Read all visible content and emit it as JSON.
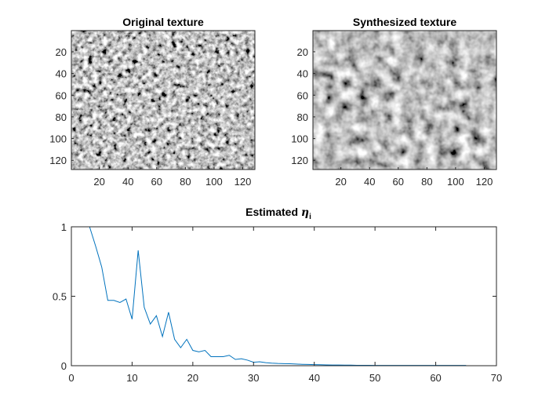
{
  "figure": {
    "background": "#ffffff",
    "axis_color": "#262626",
    "line_color": "#0072BD"
  },
  "chart_data": [
    {
      "type": "heatmap",
      "title": "Original texture",
      "colormap": "gray",
      "size": [
        128,
        128
      ],
      "xlim": [
        0.5,
        128.5
      ],
      "ylim": [
        0.5,
        128.5
      ],
      "xticks": [
        20,
        40,
        60,
        80,
        100,
        120
      ],
      "yticks": [
        20,
        40,
        60,
        80,
        100,
        120
      ],
      "texture": "high-frequency mottled grayscale noise, high contrast"
    },
    {
      "type": "heatmap",
      "title": "Synthesized texture",
      "colormap": "gray",
      "size": [
        128,
        128
      ],
      "xlim": [
        0.5,
        128.5
      ],
      "ylim": [
        0.5,
        128.5
      ],
      "xticks": [
        20,
        40,
        60,
        80,
        100,
        120
      ],
      "yticks": [
        20,
        40,
        60,
        80,
        100,
        120
      ],
      "texture": "smoother lower-contrast grayscale noise"
    },
    {
      "type": "line",
      "title_main": "Estimated ",
      "title_symbol": "η",
      "title_sub": "i",
      "xlim": [
        0,
        70
      ],
      "ylim": [
        0,
        1
      ],
      "xticks": [
        0,
        10,
        20,
        30,
        40,
        50,
        60,
        70
      ],
      "yticks": [
        0,
        0.5,
        1
      ],
      "grid": false,
      "x": [
        3,
        4,
        5,
        6,
        7,
        8,
        9,
        10,
        11,
        12,
        13,
        14,
        15,
        16,
        17,
        18,
        19,
        20,
        21,
        22,
        23,
        24,
        25,
        26,
        27,
        28,
        29,
        30,
        31,
        32,
        33,
        34,
        35,
        36,
        37,
        38,
        39,
        40,
        41,
        42,
        43,
        44,
        45,
        46,
        47,
        48,
        49,
        50,
        51,
        52,
        53,
        54,
        55,
        56,
        57,
        58,
        59,
        60,
        61,
        62,
        63,
        64,
        65
      ],
      "y": [
        1.0,
        0.86,
        0.71,
        0.47,
        0.47,
        0.455,
        0.48,
        0.335,
        0.83,
        0.42,
        0.3,
        0.36,
        0.21,
        0.385,
        0.19,
        0.13,
        0.19,
        0.11,
        0.1,
        0.11,
        0.065,
        0.065,
        0.065,
        0.075,
        0.045,
        0.05,
        0.04,
        0.025,
        0.028,
        0.022,
        0.018,
        0.016,
        0.015,
        0.014,
        0.012,
        0.01,
        0.009,
        0.008,
        0.007,
        0.006,
        0.005,
        0.005,
        0.004,
        0.004,
        0.003,
        0.003,
        0.003,
        0.002,
        0.002,
        0.002,
        0.002,
        0.002,
        0.002,
        0.002,
        0.002,
        0.002,
        0.002,
        0.002,
        0.002,
        0.002,
        0.002,
        0.002,
        0.002
      ]
    }
  ]
}
